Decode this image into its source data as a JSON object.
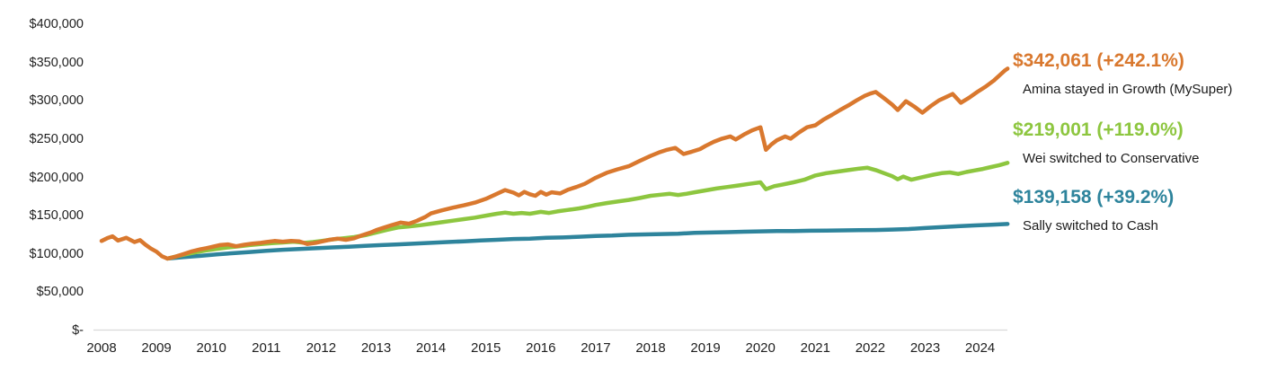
{
  "chart_data": {
    "type": "line",
    "title": "",
    "xlabel": "",
    "ylabel": "",
    "grid": "off",
    "legend_position": "right-annotations",
    "axis_line_color": "#d9d9d9",
    "x_axis": {
      "min": 2008,
      "max": 2024.5,
      "ticks": [
        2008,
        2009,
        2010,
        2011,
        2012,
        2013,
        2014,
        2015,
        2016,
        2017,
        2018,
        2019,
        2020,
        2021,
        2022,
        2023,
        2024
      ]
    },
    "y_axis": {
      "min": 0,
      "max": 400000,
      "ticks": [
        {
          "label": "$400,000",
          "value": 400000
        },
        {
          "label": "$350,000",
          "value": 350000
        },
        {
          "label": "$300,000",
          "value": 300000
        },
        {
          "label": "$250,000",
          "value": 250000
        },
        {
          "label": "$200,000",
          "value": 200000
        },
        {
          "label": "$150,000",
          "value": 150000
        },
        {
          "label": "$100,000",
          "value": 100000
        },
        {
          "label": "$50,000",
          "value": 50000
        },
        {
          "label": "$-",
          "value": 0
        }
      ]
    },
    "series": [
      {
        "key": "growth",
        "name": "Amina stayed in Growth (MySuper)",
        "color": "#d9782e",
        "final_value": 342061,
        "total_return_pct": 242.1,
        "points": [
          [
            2008.0,
            117000
          ],
          [
            2008.1,
            120500
          ],
          [
            2008.2,
            123000
          ],
          [
            2008.3,
            117500
          ],
          [
            2008.45,
            121000
          ],
          [
            2008.6,
            115500
          ],
          [
            2008.7,
            118000
          ],
          [
            2008.8,
            112000
          ],
          [
            2008.9,
            107000
          ],
          [
            2009.0,
            103000
          ],
          [
            2009.1,
            97000
          ],
          [
            2009.2,
            94000
          ],
          [
            2009.35,
            96500
          ],
          [
            2009.5,
            100000
          ],
          [
            2009.65,
            103500
          ],
          [
            2009.8,
            106000
          ],
          [
            2009.9,
            107500
          ],
          [
            2010.0,
            109000
          ],
          [
            2010.15,
            111500
          ],
          [
            2010.3,
            112500
          ],
          [
            2010.45,
            110000
          ],
          [
            2010.6,
            112000
          ],
          [
            2010.75,
            113500
          ],
          [
            2010.9,
            114500
          ],
          [
            2011.0,
            115500
          ],
          [
            2011.15,
            117000
          ],
          [
            2011.3,
            116000
          ],
          [
            2011.45,
            117000
          ],
          [
            2011.6,
            116500
          ],
          [
            2011.75,
            113000
          ],
          [
            2011.9,
            114500
          ],
          [
            2012.0,
            116000
          ],
          [
            2012.15,
            118500
          ],
          [
            2012.3,
            120000
          ],
          [
            2012.45,
            118500
          ],
          [
            2012.6,
            120500
          ],
          [
            2012.75,
            124500
          ],
          [
            2012.9,
            128000
          ],
          [
            2013.0,
            131000
          ],
          [
            2013.15,
            134500
          ],
          [
            2013.3,
            138000
          ],
          [
            2013.45,
            141000
          ],
          [
            2013.6,
            139500
          ],
          [
            2013.75,
            143500
          ],
          [
            2013.9,
            148500
          ],
          [
            2014.0,
            153000
          ],
          [
            2014.2,
            157000
          ],
          [
            2014.4,
            160500
          ],
          [
            2014.6,
            163500
          ],
          [
            2014.8,
            167000
          ],
          [
            2015.0,
            172000
          ],
          [
            2015.2,
            178500
          ],
          [
            2015.35,
            183500
          ],
          [
            2015.5,
            180000
          ],
          [
            2015.6,
            176500
          ],
          [
            2015.7,
            181000
          ],
          [
            2015.8,
            178000
          ],
          [
            2015.9,
            176000
          ],
          [
            2016.0,
            181000
          ],
          [
            2016.1,
            177500
          ],
          [
            2016.2,
            180500
          ],
          [
            2016.35,
            179000
          ],
          [
            2016.5,
            184000
          ],
          [
            2016.65,
            187500
          ],
          [
            2016.8,
            191500
          ],
          [
            2017.0,
            199500
          ],
          [
            2017.2,
            206000
          ],
          [
            2017.4,
            210500
          ],
          [
            2017.6,
            214500
          ],
          [
            2017.8,
            221500
          ],
          [
            2018.0,
            228000
          ],
          [
            2018.15,
            232500
          ],
          [
            2018.3,
            236000
          ],
          [
            2018.45,
            238500
          ],
          [
            2018.6,
            230500
          ],
          [
            2018.75,
            233500
          ],
          [
            2018.9,
            237000
          ],
          [
            2019.0,
            241000
          ],
          [
            2019.15,
            246500
          ],
          [
            2019.3,
            250500
          ],
          [
            2019.45,
            253500
          ],
          [
            2019.55,
            249500
          ],
          [
            2019.7,
            256000
          ],
          [
            2019.85,
            261500
          ],
          [
            2020.0,
            265500
          ],
          [
            2020.1,
            236000
          ],
          [
            2020.2,
            243000
          ],
          [
            2020.3,
            248500
          ],
          [
            2020.45,
            253500
          ],
          [
            2020.55,
            250500
          ],
          [
            2020.7,
            258500
          ],
          [
            2020.85,
            265500
          ],
          [
            2021.0,
            268000
          ],
          [
            2021.15,
            275500
          ],
          [
            2021.3,
            281500
          ],
          [
            2021.45,
            288000
          ],
          [
            2021.6,
            294000
          ],
          [
            2021.75,
            300500
          ],
          [
            2021.9,
            306500
          ],
          [
            2022.0,
            309500
          ],
          [
            2022.1,
            311500
          ],
          [
            2022.25,
            303500
          ],
          [
            2022.4,
            295000
          ],
          [
            2022.5,
            288000
          ],
          [
            2022.65,
            299500
          ],
          [
            2022.8,
            292500
          ],
          [
            2022.95,
            284500
          ],
          [
            2023.1,
            293000
          ],
          [
            2023.25,
            300500
          ],
          [
            2023.4,
            305500
          ],
          [
            2023.5,
            309000
          ],
          [
            2023.65,
            297500
          ],
          [
            2023.8,
            304000
          ],
          [
            2023.95,
            311500
          ],
          [
            2024.1,
            318500
          ],
          [
            2024.25,
            326500
          ],
          [
            2024.35,
            333000
          ],
          [
            2024.45,
            339500
          ],
          [
            2024.5,
            342061
          ]
        ]
      },
      {
        "key": "conservative",
        "name": "Wei switched to Conservative",
        "color": "#8dc63f",
        "final_value": 219001,
        "total_return_pct": 119.0,
        "points": [
          [
            2009.2,
            94000
          ],
          [
            2009.35,
            96500
          ],
          [
            2009.5,
            99000
          ],
          [
            2009.7,
            102000
          ],
          [
            2009.9,
            104500
          ],
          [
            2010.1,
            106500
          ],
          [
            2010.3,
            108500
          ],
          [
            2010.5,
            110000
          ],
          [
            2010.7,
            111500
          ],
          [
            2010.9,
            113000
          ],
          [
            2011.1,
            114000
          ],
          [
            2011.3,
            115000
          ],
          [
            2011.5,
            116000
          ],
          [
            2011.7,
            114500
          ],
          [
            2011.85,
            115500
          ],
          [
            2012.0,
            117000
          ],
          [
            2012.2,
            119000
          ],
          [
            2012.4,
            120500
          ],
          [
            2012.6,
            122000
          ],
          [
            2012.8,
            124500
          ],
          [
            2013.0,
            128000
          ],
          [
            2013.2,
            131500
          ],
          [
            2013.4,
            134500
          ],
          [
            2013.6,
            136000
          ],
          [
            2013.8,
            137500
          ],
          [
            2014.0,
            139500
          ],
          [
            2014.2,
            141500
          ],
          [
            2014.4,
            143500
          ],
          [
            2014.6,
            145500
          ],
          [
            2014.8,
            147500
          ],
          [
            2015.0,
            150000
          ],
          [
            2015.2,
            152500
          ],
          [
            2015.35,
            154000
          ],
          [
            2015.5,
            152500
          ],
          [
            2015.65,
            153500
          ],
          [
            2015.8,
            152500
          ],
          [
            2016.0,
            155000
          ],
          [
            2016.15,
            153500
          ],
          [
            2016.3,
            155500
          ],
          [
            2016.5,
            157500
          ],
          [
            2016.7,
            159500
          ],
          [
            2016.85,
            161500
          ],
          [
            2017.0,
            164000
          ],
          [
            2017.2,
            166500
          ],
          [
            2017.4,
            168500
          ],
          [
            2017.6,
            170500
          ],
          [
            2017.8,
            173000
          ],
          [
            2018.0,
            176000
          ],
          [
            2018.2,
            177500
          ],
          [
            2018.35,
            178500
          ],
          [
            2018.5,
            177000
          ],
          [
            2018.65,
            178500
          ],
          [
            2018.8,
            180500
          ],
          [
            2019.0,
            183000
          ],
          [
            2019.2,
            185500
          ],
          [
            2019.4,
            187500
          ],
          [
            2019.6,
            189500
          ],
          [
            2019.8,
            191500
          ],
          [
            2020.0,
            193500
          ],
          [
            2020.1,
            184500
          ],
          [
            2020.25,
            188500
          ],
          [
            2020.4,
            190500
          ],
          [
            2020.6,
            193500
          ],
          [
            2020.8,
            197000
          ],
          [
            2021.0,
            202500
          ],
          [
            2021.2,
            205500
          ],
          [
            2021.4,
            207500
          ],
          [
            2021.6,
            209500
          ],
          [
            2021.8,
            211500
          ],
          [
            2021.95,
            212500
          ],
          [
            2022.1,
            209500
          ],
          [
            2022.25,
            205500
          ],
          [
            2022.4,
            201500
          ],
          [
            2022.5,
            197500
          ],
          [
            2022.6,
            201000
          ],
          [
            2022.75,
            197000
          ],
          [
            2022.9,
            199500
          ],
          [
            2023.0,
            201000
          ],
          [
            2023.15,
            203500
          ],
          [
            2023.3,
            205500
          ],
          [
            2023.45,
            206500
          ],
          [
            2023.6,
            204500
          ],
          [
            2023.75,
            207000
          ],
          [
            2023.9,
            209000
          ],
          [
            2024.05,
            211000
          ],
          [
            2024.2,
            213500
          ],
          [
            2024.35,
            216000
          ],
          [
            2024.5,
            219001
          ]
        ]
      },
      {
        "key": "cash",
        "name": "Sally switched to Cash",
        "color": "#2e849c",
        "final_value": 139158,
        "total_return_pct": 39.2,
        "points": [
          [
            2009.2,
            94000
          ],
          [
            2009.5,
            96000
          ],
          [
            2009.8,
            97500
          ],
          [
            2010.1,
            99500
          ],
          [
            2010.4,
            101000
          ],
          [
            2010.7,
            102500
          ],
          [
            2011.0,
            104000
          ],
          [
            2011.3,
            105500
          ],
          [
            2011.6,
            106500
          ],
          [
            2011.9,
            107500
          ],
          [
            2012.2,
            108500
          ],
          [
            2012.5,
            109500
          ],
          [
            2012.8,
            110500
          ],
          [
            2013.1,
            111500
          ],
          [
            2013.4,
            112500
          ],
          [
            2013.7,
            113500
          ],
          [
            2014.0,
            114500
          ],
          [
            2014.3,
            115500
          ],
          [
            2014.6,
            116500
          ],
          [
            2014.9,
            117500
          ],
          [
            2015.2,
            118500
          ],
          [
            2015.5,
            119500
          ],
          [
            2015.8,
            120000
          ],
          [
            2016.1,
            121000
          ],
          [
            2016.4,
            121500
          ],
          [
            2016.7,
            122500
          ],
          [
            2017.0,
            123500
          ],
          [
            2017.3,
            124000
          ],
          [
            2017.6,
            125000
          ],
          [
            2017.9,
            125500
          ],
          [
            2018.2,
            126000
          ],
          [
            2018.5,
            126500
          ],
          [
            2018.8,
            127500
          ],
          [
            2019.1,
            128000
          ],
          [
            2019.4,
            128500
          ],
          [
            2019.7,
            129000
          ],
          [
            2020.0,
            129500
          ],
          [
            2020.3,
            129800
          ],
          [
            2020.6,
            130000
          ],
          [
            2020.9,
            130300
          ],
          [
            2021.2,
            130500
          ],
          [
            2021.5,
            130800
          ],
          [
            2021.8,
            131000
          ],
          [
            2022.1,
            131300
          ],
          [
            2022.4,
            131800
          ],
          [
            2022.7,
            132500
          ],
          [
            2023.0,
            133800
          ],
          [
            2023.3,
            135000
          ],
          [
            2023.6,
            136200
          ],
          [
            2023.9,
            137300
          ],
          [
            2024.2,
            138200
          ],
          [
            2024.5,
            139158
          ]
        ]
      }
    ]
  },
  "annotations": [
    {
      "value": "$342,061 (+242.1%)",
      "label": "Amina stayed in Growth (MySuper)",
      "color": "#d9782e"
    },
    {
      "value": "$219,001 (+119.0%)",
      "label": "Wei switched to Conservative",
      "color": "#8dc63f"
    },
    {
      "value": "$139,158 (+39.2%)",
      "label": "Sally switched to Cash",
      "color": "#2e849c"
    }
  ]
}
